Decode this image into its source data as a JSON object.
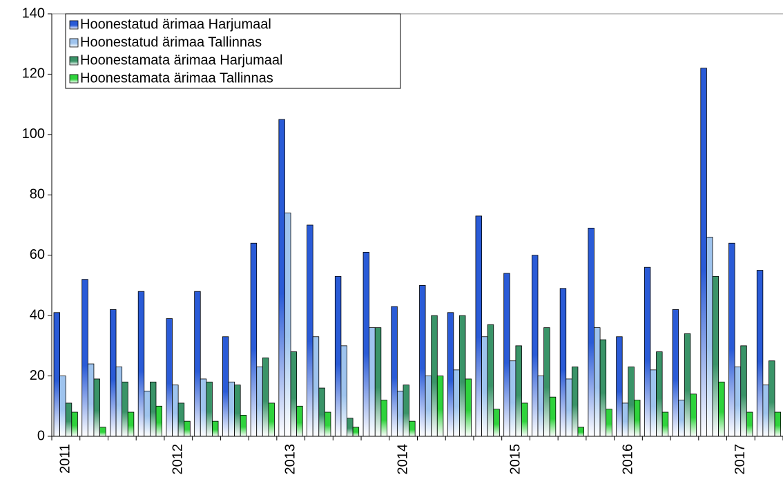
{
  "chart_data": {
    "type": "bar",
    "categories": [
      "2011",
      null,
      null,
      null,
      "2012",
      null,
      null,
      null,
      "2013",
      null,
      null,
      null,
      "2014",
      null,
      null,
      null,
      "2015",
      null,
      null,
      null,
      "2016",
      null,
      null,
      null,
      "2017",
      null
    ],
    "series": [
      {
        "name": "Hoonestatud ärimaa Harjumaal",
        "color": "#2a5bd7",
        "values": [
          41,
          52,
          42,
          48,
          39,
          48,
          33,
          64,
          105,
          70,
          53,
          61,
          43,
          50,
          41,
          73,
          54,
          60,
          49,
          69,
          33,
          56,
          42,
          122,
          64,
          55
        ]
      },
      {
        "name": "Hoonestatud ärimaa Tallinnas",
        "color": "#9fc4ee",
        "values": [
          20,
          24,
          23,
          15,
          17,
          19,
          18,
          23,
          74,
          33,
          30,
          36,
          15,
          20,
          22,
          33,
          25,
          20,
          19,
          36,
          11,
          22,
          12,
          66,
          23,
          17
        ]
      },
      {
        "name": "Hoonestamata ärimaa Harjumaal",
        "color": "#3a9468",
        "values": [
          11,
          19,
          18,
          18,
          11,
          18,
          17,
          26,
          28,
          16,
          6,
          36,
          17,
          40,
          40,
          37,
          30,
          36,
          23,
          32,
          23,
          28,
          34,
          53,
          30,
          25
        ]
      },
      {
        "name": "Hoonestamata ärimaa Tallinnas",
        "color": "#2fd33c",
        "values": [
          8,
          3,
          8,
          10,
          5,
          5,
          7,
          11,
          10,
          8,
          3,
          12,
          5,
          20,
          19,
          9,
          11,
          13,
          3,
          9,
          12,
          8,
          14,
          18,
          8,
          8
        ]
      }
    ],
    "ylim": [
      0,
      140
    ],
    "yticks": [
      0,
      20,
      40,
      60,
      80,
      100,
      120,
      140
    ],
    "grid": false
  }
}
